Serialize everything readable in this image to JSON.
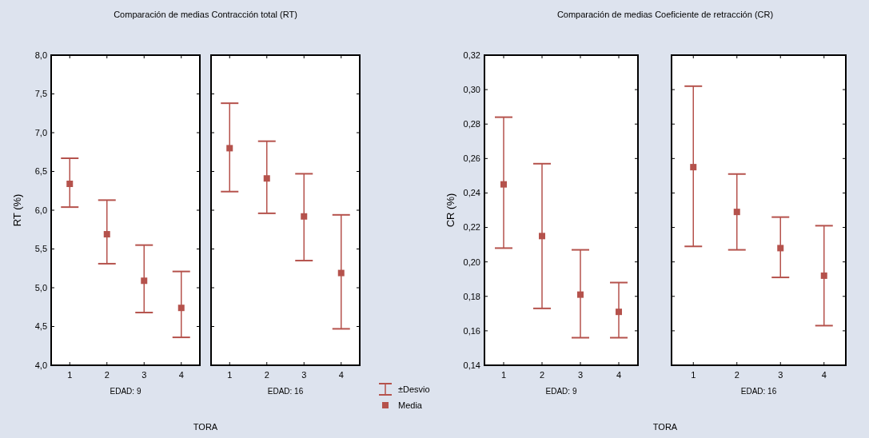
{
  "chart_data": [
    {
      "type": "scatter",
      "title": "Comparación de medias Contracción total (RT)",
      "ylabel": "RT (%)",
      "xlabel": "EDAD: 9",
      "annotations": [
        "TORA"
      ],
      "categories": [
        "1",
        "2",
        "3",
        "4"
      ],
      "ylim": [
        4,
        8
      ],
      "yticks": [
        {
          "value": 4,
          "label": "4,0"
        },
        {
          "value": 4.5,
          "label": "4,5"
        },
        {
          "value": 5,
          "label": "5,0"
        },
        {
          "value": 5.5,
          "label": "5,5"
        },
        {
          "value": 6,
          "label": "6,0"
        },
        {
          "value": 6.5,
          "label": "6,5"
        },
        {
          "value": 7,
          "label": "7,0"
        },
        {
          "value": 7.5,
          "label": "7,5"
        },
        {
          "value": 8,
          "label": "8,0"
        }
      ],
      "marker": "square",
      "series": [
        {
          "color": "#b5524c",
          "values": [
            6.34,
            5.69,
            5.09,
            4.74
          ],
          "errors": [
            [
              6.04,
              6.67
            ],
            [
              5.31,
              6.13
            ],
            [
              4.68,
              5.55
            ],
            [
              4.36,
              5.21
            ]
          ]
        }
      ]
    },
    {
      "type": "scatter",
      "xlabel": "EDAD: 16",
      "categories": [
        "1",
        "2",
        "3",
        "4"
      ],
      "ylim": [
        4,
        8
      ],
      "yticks": [
        4,
        4.5,
        5,
        5.5,
        6,
        6.5,
        7,
        7.5,
        8
      ],
      "tick_labels": "x",
      "marker": "square",
      "legend": "right",
      "annotations": [
        "±Desvio"
      ],
      "series": [
        {
          "name": "Media",
          "color": "#b5524c",
          "values": [
            6.8,
            6.41,
            5.92,
            5.19
          ],
          "errors": [
            [
              6.24,
              7.38
            ],
            [
              5.96,
              6.89
            ],
            [
              5.35,
              6.47
            ],
            [
              4.47,
              5.94
            ]
          ]
        }
      ]
    },
    {
      "type": "scatter",
      "title": "Comparación de medias Coeficiente de retracción (CR)",
      "ylabel": "CR (%)",
      "xlabel": "EDAD: 9",
      "annotations": [
        "TORA"
      ],
      "categories": [
        "1",
        "2",
        "3",
        "4"
      ],
      "ylim": [
        0.14,
        0.32
      ],
      "yticks": [
        {
          "value": 0.14,
          "label": "0,14"
        },
        {
          "value": 0.16,
          "label": "0,16"
        },
        {
          "value": 0.18,
          "label": "0,18"
        },
        {
          "value": 0.2,
          "label": "0,20"
        },
        {
          "value": 0.22,
          "label": "0,22"
        },
        {
          "value": 0.24,
          "label": "0,24"
        },
        {
          "value": 0.26,
          "label": "0,26"
        },
        {
          "value": 0.28,
          "label": "0,28"
        },
        {
          "value": 0.3,
          "label": "0,30"
        },
        {
          "value": 0.32,
          "label": "0,32"
        }
      ],
      "marker": "square",
      "series": [
        {
          "color": "#b5524c",
          "values": [
            0.245,
            0.215,
            0.181,
            0.171
          ],
          "errors": [
            [
              0.208,
              0.284
            ],
            [
              0.173,
              0.257
            ],
            [
              0.156,
              0.207
            ],
            [
              0.156,
              0.188
            ]
          ]
        }
      ]
    },
    {
      "type": "scatter",
      "xlabel": "EDAD: 16",
      "categories": [
        "1",
        "2",
        "3",
        "4"
      ],
      "ylim": [
        0.14,
        0.32
      ],
      "yticks": [
        0.14,
        0.16,
        0.18,
        0.2,
        0.22,
        0.24,
        0.26,
        0.28,
        0.3,
        0.32
      ],
      "tick_labels": "x",
      "marker": "square",
      "series": [
        {
          "color": "#b5524c",
          "values": [
            0.255,
            0.229,
            0.208,
            0.192
          ],
          "errors": [
            [
              0.209,
              0.302
            ],
            [
              0.207,
              0.251
            ],
            [
              0.191,
              0.226
            ],
            [
              0.163,
              0.221
            ]
          ]
        }
      ]
    }
  ]
}
